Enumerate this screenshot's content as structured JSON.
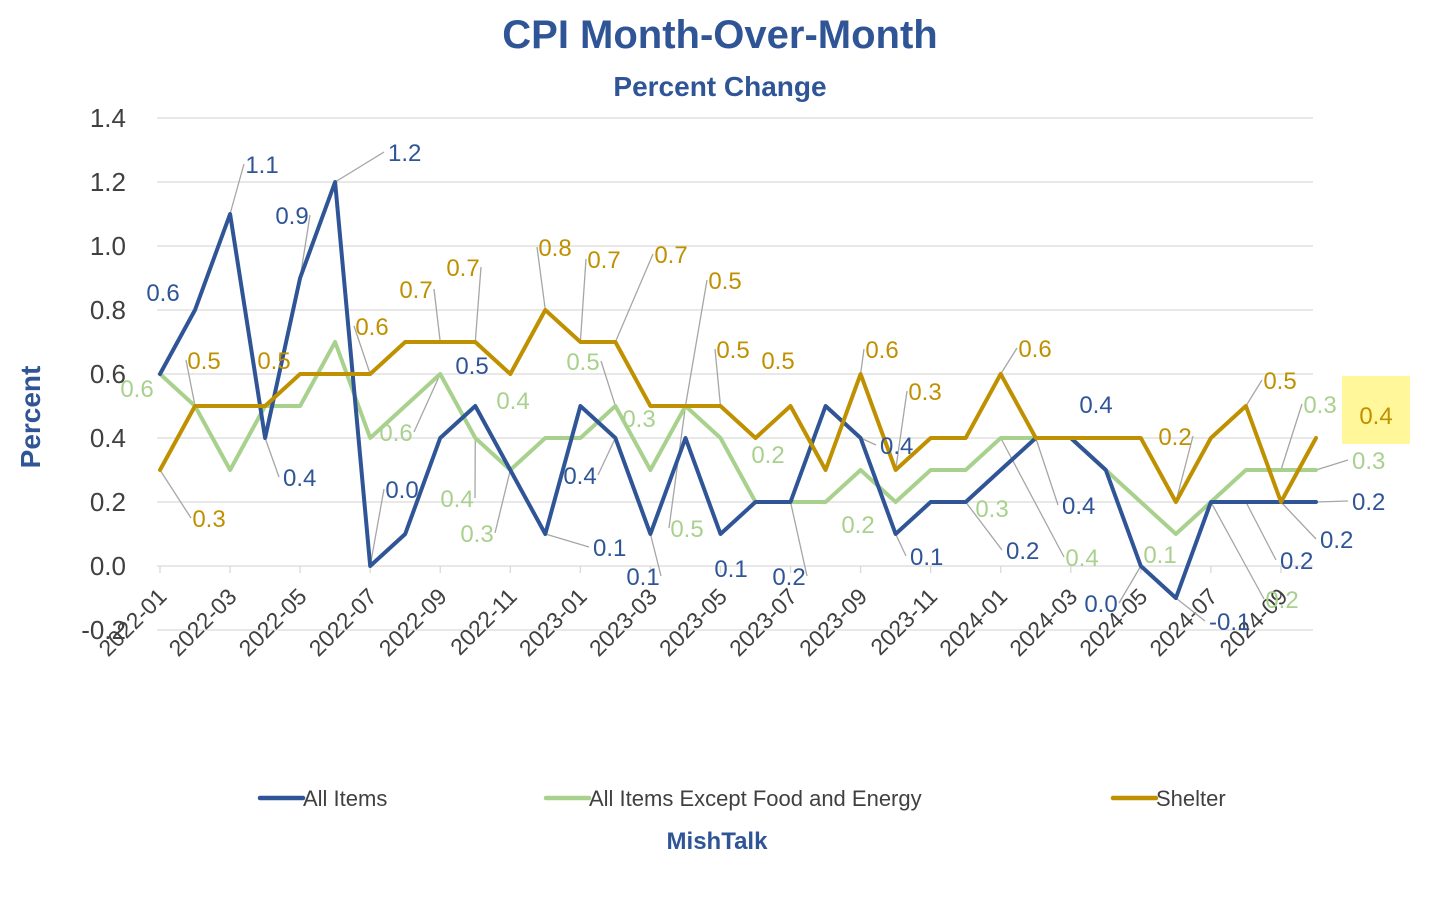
{
  "chart_data": {
    "type": "line",
    "title": "CPI Month-Over-Month",
    "subtitle": "Percent Change",
    "ylabel": "Percent",
    "xlabel": "",
    "source": "MishTalk",
    "ylim": [
      -0.2,
      1.4
    ],
    "yticks": [
      "1.4",
      "1.2",
      "1.0",
      "0.8",
      "0.6",
      "0.4",
      "0.2",
      "0.0",
      "-0.2"
    ],
    "grid": "horizontal",
    "legend_position": "bottom",
    "x": [
      "2022-01",
      "2022-02",
      "2022-03",
      "2022-04",
      "2022-05",
      "2022-06",
      "2022-07",
      "2022-08",
      "2022-09",
      "2022-10",
      "2022-11",
      "2022-12",
      "2023-01",
      "2023-02",
      "2023-03",
      "2023-04",
      "2023-05",
      "2023-06",
      "2023-07",
      "2023-08",
      "2023-09",
      "2023-10",
      "2023-11",
      "2023-12",
      "2024-01",
      "2024-02",
      "2024-03",
      "2024-04",
      "2024-05",
      "2024-06",
      "2024-07",
      "2024-08",
      "2024-09",
      "2024-10"
    ],
    "xtick_labels": [
      "2022-01",
      "2022-03",
      "2022-05",
      "2022-07",
      "2022-09",
      "2022-11",
      "2023-01",
      "2023-03",
      "2023-05",
      "2023-07",
      "2023-09",
      "2023-11",
      "2024-01",
      "2024-03",
      "2024-05",
      "2024-07",
      "2024-09"
    ],
    "series": [
      {
        "name": "All Items",
        "color": "#2F5597",
        "values": [
          0.6,
          0.8,
          1.1,
          0.4,
          0.9,
          1.2,
          0.0,
          0.1,
          0.4,
          0.5,
          0.3,
          0.1,
          0.5,
          0.4,
          0.1,
          0.4,
          0.1,
          0.2,
          0.2,
          0.5,
          0.4,
          0.1,
          0.2,
          0.2,
          0.3,
          0.4,
          0.4,
          0.3,
          0.0,
          -0.1,
          0.2,
          0.2,
          0.2,
          0.2
        ]
      },
      {
        "name": "All Items Except Food and Energy",
        "color": "#A9D18E",
        "values": [
          0.6,
          0.5,
          0.3,
          0.5,
          0.5,
          0.7,
          0.4,
          0.5,
          0.6,
          0.4,
          0.3,
          0.4,
          0.4,
          0.5,
          0.3,
          0.5,
          0.4,
          0.2,
          0.2,
          0.2,
          0.3,
          0.2,
          0.3,
          0.3,
          0.4,
          0.4,
          0.4,
          0.3,
          0.2,
          0.1,
          0.2,
          0.3,
          0.3,
          0.3
        ]
      },
      {
        "name": "Shelter",
        "color": "#BF9000",
        "values": [
          0.3,
          0.5,
          0.5,
          0.5,
          0.6,
          0.6,
          0.6,
          0.7,
          0.7,
          0.7,
          0.6,
          0.8,
          0.7,
          0.7,
          0.5,
          0.5,
          0.5,
          0.4,
          0.5,
          0.3,
          0.6,
          0.3,
          0.4,
          0.4,
          0.6,
          0.4,
          0.4,
          0.4,
          0.4,
          0.2,
          0.4,
          0.5,
          0.2,
          0.4
        ]
      }
    ],
    "data_labels": [
      {
        "series": 0,
        "text": "0.6",
        "i": 0,
        "lx": 163,
        "ly": 301,
        "anchor": "middle"
      },
      {
        "series": 0,
        "text": "1.1",
        "i": 2,
        "lx": 262,
        "ly": 173,
        "anchor": "middle",
        "leader": true
      },
      {
        "series": 0,
        "text": "0.9",
        "i": 4,
        "lx": 292,
        "ly": 224,
        "anchor": "middle",
        "leader": true
      },
      {
        "series": 0,
        "text": "1.2",
        "i": 5,
        "lx": 388,
        "ly": 161,
        "anchor": "start",
        "leader": true
      },
      {
        "series": 0,
        "text": "0.4",
        "i": 3,
        "lx": 283,
        "ly": 486,
        "anchor": "start",
        "leader": true
      },
      {
        "series": 0,
        "text": "0.0",
        "i": 6,
        "lx": 402,
        "ly": 498,
        "anchor": "middle",
        "leader": true
      },
      {
        "series": 0,
        "text": "0.5",
        "i": 9,
        "lx": 472,
        "ly": 374,
        "anchor": "middle"
      },
      {
        "series": 0,
        "text": "0.1",
        "i": 11,
        "lx": 593,
        "ly": 556,
        "anchor": "start",
        "leader": true
      },
      {
        "series": 0,
        "text": "0.4",
        "i": 13,
        "lx": 580,
        "ly": 484,
        "anchor": "middle",
        "leader": true
      },
      {
        "series": 0,
        "text": "0.1",
        "i": 14,
        "lx": 643,
        "ly": 585,
        "anchor": "middle",
        "leader": true
      },
      {
        "series": 0,
        "text": "0.1",
        "i": 16,
        "lx": 731,
        "ly": 577,
        "anchor": "middle"
      },
      {
        "series": 0,
        "text": "0.2",
        "i": 18,
        "lx": 789,
        "ly": 585,
        "anchor": "middle",
        "leader": true
      },
      {
        "series": 0,
        "text": "0.4",
        "i": 20,
        "lx": 880,
        "ly": 454,
        "anchor": "start",
        "leader": true
      },
      {
        "series": 0,
        "text": "0.1",
        "i": 21,
        "lx": 910,
        "ly": 565,
        "anchor": "start",
        "leader": true
      },
      {
        "series": 0,
        "text": "0.2",
        "i": 23,
        "lx": 1006,
        "ly": 559,
        "anchor": "start",
        "leader": true
      },
      {
        "series": 0,
        "text": "0.4",
        "i": 25,
        "lx": 1062,
        "ly": 514,
        "anchor": "start",
        "leader": true
      },
      {
        "series": 0,
        "text": "0.4",
        "i": 26,
        "lx": 1096,
        "ly": 413,
        "anchor": "middle"
      },
      {
        "series": 0,
        "text": "0.0",
        "i": 28,
        "lx": 1101,
        "ly": 612,
        "anchor": "middle",
        "leader": true
      },
      {
        "series": 0,
        "text": "-0.1",
        "i": 29,
        "lx": 1209,
        "ly": 630,
        "anchor": "start",
        "leader": true
      },
      {
        "series": 0,
        "text": "0.2",
        "i": 31,
        "lx": 1280,
        "ly": 569,
        "anchor": "start",
        "leader": true
      },
      {
        "series": 0,
        "text": "0.2",
        "i": 32,
        "lx": 1320,
        "ly": 548,
        "anchor": "start",
        "leader": true
      },
      {
        "series": 0,
        "text": "0.2",
        "i": 33,
        "lx": 1352,
        "ly": 510,
        "anchor": "start",
        "leader": true
      },
      {
        "series": 1,
        "text": "0.6",
        "i": 0,
        "lx": 137,
        "ly": 397,
        "anchor": "middle"
      },
      {
        "series": 1,
        "text": "0.6",
        "i": 8,
        "lx": 396,
        "ly": 441,
        "anchor": "middle",
        "leader": true
      },
      {
        "series": 1,
        "text": "0.4",
        "i": 9,
        "lx": 457,
        "ly": 507,
        "anchor": "middle",
        "leader": true
      },
      {
        "series": 1,
        "text": "0.3",
        "i": 10,
        "lx": 477,
        "ly": 542,
        "anchor": "middle",
        "leader": true
      },
      {
        "series": 1,
        "text": "0.4",
        "i": 11,
        "lx": 513,
        "ly": 409,
        "anchor": "middle"
      },
      {
        "series": 1,
        "text": "0.5",
        "i": 13,
        "lx": 583,
        "ly": 370,
        "anchor": "middle",
        "leader": true
      },
      {
        "series": 1,
        "text": "0.3",
        "i": 14,
        "lx": 639,
        "ly": 427,
        "anchor": "middle"
      },
      {
        "series": 1,
        "text": "0.5",
        "i": 15,
        "lx": 687,
        "ly": 537,
        "anchor": "middle",
        "leader": true
      },
      {
        "series": 1,
        "text": "0.2",
        "i": 17,
        "lx": 768,
        "ly": 463,
        "anchor": "middle"
      },
      {
        "series": 1,
        "text": "0.2",
        "i": 19,
        "lx": 858,
        "ly": 533,
        "anchor": "middle"
      },
      {
        "series": 1,
        "text": "0.3",
        "i": 22,
        "lx": 992,
        "ly": 517,
        "anchor": "middle"
      },
      {
        "series": 1,
        "text": "0.4",
        "i": 24,
        "lx": 1082,
        "ly": 566,
        "anchor": "middle",
        "leader": true
      },
      {
        "series": 1,
        "text": "0.1",
        "i": 29,
        "lx": 1160,
        "ly": 563,
        "anchor": "middle"
      },
      {
        "series": 1,
        "text": "0.2",
        "i": 30,
        "lx": 1282,
        "ly": 608,
        "anchor": "middle",
        "leader": true
      },
      {
        "series": 1,
        "text": "0.3",
        "i": 32,
        "lx": 1320,
        "ly": 413,
        "anchor": "middle",
        "leader": true
      },
      {
        "series": 1,
        "text": "0.3",
        "i": 33,
        "lx": 1352,
        "ly": 469,
        "anchor": "start",
        "leader": true
      },
      {
        "series": 2,
        "text": "0.3",
        "i": 0,
        "lx": 209,
        "ly": 527,
        "anchor": "middle",
        "leader": true
      },
      {
        "series": 2,
        "text": "0.5",
        "i": 1,
        "lx": 204,
        "ly": 369,
        "anchor": "middle",
        "leader": true
      },
      {
        "series": 2,
        "text": "0.5",
        "i": 3,
        "lx": 274,
        "ly": 369,
        "anchor": "middle"
      },
      {
        "series": 2,
        "text": "0.6",
        "i": 6,
        "lx": 372,
        "ly": 335,
        "anchor": "middle",
        "leader": true
      },
      {
        "series": 2,
        "text": "0.7",
        "i": 8,
        "lx": 416,
        "ly": 298,
        "anchor": "middle",
        "leader": true
      },
      {
        "series": 2,
        "text": "0.7",
        "i": 9,
        "lx": 463,
        "ly": 276,
        "anchor": "middle",
        "leader": true
      },
      {
        "series": 2,
        "text": "0.8",
        "i": 11,
        "lx": 555,
        "ly": 256,
        "anchor": "middle",
        "leader": true
      },
      {
        "series": 2,
        "text": "0.7",
        "i": 12,
        "lx": 604,
        "ly": 268,
        "anchor": "middle",
        "leader": true
      },
      {
        "series": 2,
        "text": "0.7",
        "i": 13,
        "lx": 671,
        "ly": 263,
        "anchor": "middle",
        "leader": true
      },
      {
        "series": 2,
        "text": "0.5",
        "i": 15,
        "lx": 725,
        "ly": 289,
        "anchor": "middle",
        "leader": true
      },
      {
        "series": 2,
        "text": "0.5",
        "i": 16,
        "lx": 733,
        "ly": 358,
        "anchor": "middle",
        "leader": true
      },
      {
        "series": 2,
        "text": "0.5",
        "i": 18,
        "lx": 778,
        "ly": 369,
        "anchor": "middle"
      },
      {
        "series": 2,
        "text": "0.6",
        "i": 20,
        "lx": 882,
        "ly": 358,
        "anchor": "middle",
        "leader": true
      },
      {
        "series": 2,
        "text": "0.3",
        "i": 21,
        "lx": 925,
        "ly": 400,
        "anchor": "middle",
        "leader": true
      },
      {
        "series": 2,
        "text": "0.6",
        "i": 24,
        "lx": 1035,
        "ly": 357,
        "anchor": "middle",
        "leader": true
      },
      {
        "series": 2,
        "text": "0.2",
        "i": 29,
        "lx": 1175,
        "ly": 445,
        "anchor": "middle",
        "leader": true
      },
      {
        "series": 2,
        "text": "0.5",
        "i": 31,
        "lx": 1280,
        "ly": 389,
        "anchor": "middle",
        "leader": true
      },
      {
        "series": 2,
        "text": "0.4",
        "i": 33,
        "lx": 1376,
        "ly": 424,
        "anchor": "middle",
        "highlight": true
      }
    ]
  }
}
